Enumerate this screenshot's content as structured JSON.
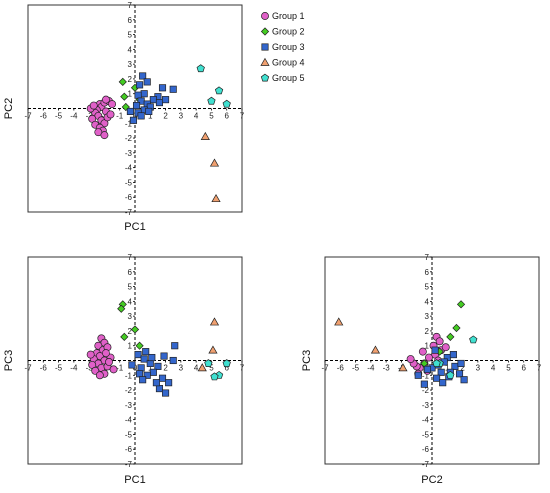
{
  "chart_data": [
    {
      "type": "scatter",
      "xlabel": "PC1",
      "ylabel": "PC2",
      "xlim": [
        -7,
        7
      ],
      "ylim": [
        -7,
        7
      ],
      "ticks": [
        "-7",
        "-6",
        "-5",
        "-4",
        "-3",
        "-2",
        "-1",
        "0",
        "1",
        "2",
        "3",
        "4",
        "5",
        "6",
        "7"
      ],
      "series": [
        {
          "name": "Group 1",
          "points": [
            [
              -2.3,
              0.3
            ],
            [
              -2.2,
              0.1
            ],
            [
              -2.0,
              0.4
            ],
            [
              -2.5,
              -0.1
            ],
            [
              -2.6,
              -0.3
            ],
            [
              -2.4,
              -0.5
            ],
            [
              -2.8,
              -0.7
            ],
            [
              -2.2,
              -0.8
            ],
            [
              -2.0,
              -1.0
            ],
            [
              -2.6,
              -1.1
            ],
            [
              -2.3,
              -1.3
            ],
            [
              -2.1,
              -1.5
            ],
            [
              -2.4,
              -1.6
            ],
            [
              -2.0,
              -1.8
            ],
            [
              -1.7,
              0.5
            ],
            [
              -1.9,
              -0.2
            ],
            [
              -1.8,
              -0.6
            ],
            [
              -1.5,
              0.3
            ],
            [
              -2.9,
              0.0
            ],
            [
              -1.6,
              -0.4
            ],
            [
              -1.9,
              0.6
            ],
            [
              -2.7,
              0.2
            ]
          ]
        },
        {
          "name": "Group 2",
          "points": [
            [
              -0.8,
              1.8
            ],
            [
              0.0,
              1.4
            ],
            [
              -0.7,
              0.8
            ],
            [
              0.3,
              0.6
            ],
            [
              -0.6,
              0.1
            ]
          ]
        },
        {
          "name": "Group 3",
          "points": [
            [
              0.5,
              2.2
            ],
            [
              0.8,
              1.8
            ],
            [
              0.3,
              1.6
            ],
            [
              1.8,
              1.4
            ],
            [
              2.5,
              1.3
            ],
            [
              0.6,
              1.0
            ],
            [
              0.2,
              0.9
            ],
            [
              1.5,
              0.8
            ],
            [
              1.2,
              0.6
            ],
            [
              0.4,
              0.5
            ],
            [
              1.6,
              0.4
            ],
            [
              0.8,
              0.3
            ],
            [
              0.1,
              0.2
            ],
            [
              1.0,
              0.1
            ],
            [
              0.6,
              -0.1
            ],
            [
              0.2,
              -0.3
            ],
            [
              -0.3,
              -0.2
            ],
            [
              0.4,
              -0.5
            ],
            [
              -0.1,
              -0.8
            ],
            [
              0.9,
              -0.2
            ],
            [
              2.0,
              0.6
            ]
          ]
        },
        {
          "name": "Group 4",
          "points": [
            [
              4.6,
              -1.9
            ],
            [
              5.2,
              -3.7
            ],
            [
              5.3,
              -6.1
            ]
          ]
        },
        {
          "name": "Group 5",
          "points": [
            [
              4.3,
              2.7
            ],
            [
              5.5,
              1.2
            ],
            [
              5.0,
              0.5
            ],
            [
              6.0,
              0.3
            ]
          ]
        }
      ]
    },
    {
      "type": "scatter",
      "xlabel": "PC1",
      "ylabel": "PC3",
      "xlim": [
        -7,
        7
      ],
      "ylim": [
        -7,
        7
      ],
      "ticks": [
        "-7",
        "-6",
        "-5",
        "-4",
        "-3",
        "-2",
        "-1",
        "0",
        "1",
        "2",
        "3",
        "4",
        "5",
        "6",
        "7"
      ],
      "series": [
        {
          "name": "Group 1",
          "points": [
            [
              -2.2,
              1.5
            ],
            [
              -2.0,
              1.2
            ],
            [
              -2.4,
              1.0
            ],
            [
              -2.1,
              0.7
            ],
            [
              -2.5,
              0.5
            ],
            [
              -2.3,
              0.3
            ],
            [
              -2.7,
              0.1
            ],
            [
              -2.0,
              0.0
            ],
            [
              -2.4,
              -0.2
            ],
            [
              -2.8,
              -0.3
            ],
            [
              -2.2,
              -0.5
            ],
            [
              -1.8,
              -0.4
            ],
            [
              -2.6,
              -0.7
            ],
            [
              -2.0,
              -0.9
            ],
            [
              -1.6,
              0.2
            ],
            [
              -1.8,
              0.9
            ],
            [
              -1.4,
              -0.6
            ],
            [
              -2.9,
              0.4
            ],
            [
              -1.7,
              -0.1
            ],
            [
              -2.3,
              -1.0
            ],
            [
              -1.9,
              0.5
            ]
          ]
        },
        {
          "name": "Group 2",
          "points": [
            [
              -0.8,
              3.8
            ],
            [
              -0.9,
              3.5
            ],
            [
              -0.7,
              1.6
            ],
            [
              0.0,
              2.1
            ],
            [
              0.3,
              1.0
            ]
          ]
        },
        {
          "name": "Group 3",
          "points": [
            [
              0.2,
              0.4
            ],
            [
              0.6,
              0.1
            ],
            [
              1.0,
              -0.2
            ],
            [
              0.4,
              -0.5
            ],
            [
              1.5,
              -0.4
            ],
            [
              1.2,
              -0.8
            ],
            [
              0.8,
              -1.0
            ],
            [
              1.8,
              -1.2
            ],
            [
              2.2,
              -1.5
            ],
            [
              1.6,
              -1.9
            ],
            [
              2.0,
              -2.2
            ],
            [
              0.3,
              -0.9
            ],
            [
              -0.2,
              -0.3
            ],
            [
              1.9,
              0.3
            ],
            [
              2.6,
              1.0
            ],
            [
              2.5,
              0.0
            ],
            [
              1.1,
              0.2
            ],
            [
              0.5,
              -1.3
            ],
            [
              1.4,
              -1.5
            ],
            [
              0.7,
              0.6
            ]
          ]
        },
        {
          "name": "Group 4",
          "points": [
            [
              5.2,
              2.6
            ],
            [
              5.1,
              0.7
            ],
            [
              4.4,
              -0.5
            ]
          ]
        },
        {
          "name": "Group 5",
          "points": [
            [
              4.8,
              -0.2
            ],
            [
              6.0,
              -0.2
            ],
            [
              5.5,
              -1.0
            ],
            [
              5.2,
              -1.1
            ]
          ]
        }
      ]
    },
    {
      "type": "scatter",
      "xlabel": "PC2",
      "ylabel": "PC3",
      "xlim": [
        -7,
        7
      ],
      "ylim": [
        -7,
        7
      ],
      "ticks": [
        "-7",
        "-6",
        "-5",
        "-4",
        "-3",
        "-2",
        "-1",
        "0",
        "1",
        "2",
        "3",
        "4",
        "5",
        "6",
        "7"
      ],
      "series": [
        {
          "name": "Group 1",
          "points": [
            [
              0.3,
              1.6
            ],
            [
              0.5,
              1.3
            ],
            [
              0.1,
              1.0
            ],
            [
              0.6,
              0.7
            ],
            [
              0.2,
              0.4
            ],
            [
              -0.2,
              0.2
            ],
            [
              0.4,
              0.0
            ],
            [
              -0.5,
              -0.2
            ],
            [
              -0.8,
              -0.5
            ],
            [
              -0.3,
              -0.7
            ],
            [
              -1.0,
              -0.4
            ],
            [
              -1.2,
              -0.2
            ],
            [
              -0.6,
              0.6
            ],
            [
              -1.4,
              0.1
            ],
            [
              0.9,
              0.9
            ],
            [
              -0.9,
              -0.9
            ]
          ]
        },
        {
          "name": "Group 2",
          "points": [
            [
              1.9,
              3.8
            ],
            [
              1.6,
              2.2
            ],
            [
              1.2,
              1.6
            ],
            [
              0.5,
              0.6
            ],
            [
              -0.5,
              -0.2
            ]
          ]
        },
        {
          "name": "Group 3",
          "points": [
            [
              1.0,
              0.2
            ],
            [
              0.4,
              -0.3
            ],
            [
              0.0,
              -0.5
            ],
            [
              1.5,
              -0.4
            ],
            [
              0.6,
              -0.8
            ],
            [
              1.1,
              -1.1
            ],
            [
              1.8,
              -0.9
            ],
            [
              0.3,
              -1.2
            ],
            [
              -0.5,
              -1.6
            ],
            [
              0.8,
              -0.1
            ],
            [
              1.4,
              0.4
            ],
            [
              -0.9,
              -1.0
            ],
            [
              0.2,
              0.7
            ],
            [
              1.9,
              -0.2
            ],
            [
              0.7,
              -1.5
            ],
            [
              -0.3,
              -0.6
            ],
            [
              2.1,
              -1.3
            ],
            [
              1.2,
              -0.8
            ]
          ]
        },
        {
          "name": "Group 4",
          "points": [
            [
              -6.1,
              2.6
            ],
            [
              -3.7,
              0.7
            ],
            [
              -1.9,
              -0.5
            ]
          ]
        },
        {
          "name": "Group 5",
          "points": [
            [
              2.7,
              1.4
            ],
            [
              0.5,
              -0.2
            ],
            [
              0.3,
              -0.2
            ],
            [
              1.2,
              -1.0
            ]
          ]
        }
      ]
    }
  ],
  "legend": {
    "items": [
      {
        "label": "Group 1",
        "marker": "circle",
        "color": "#e060c8"
      },
      {
        "label": "Group 2",
        "marker": "diamond",
        "color": "#44cc22"
      },
      {
        "label": "Group 3",
        "marker": "square",
        "color": "#3366cc"
      },
      {
        "label": "Group 4",
        "marker": "triangle",
        "color": "#f0a070"
      },
      {
        "label": "Group 5",
        "marker": "pentagon",
        "color": "#40e0d0"
      }
    ]
  }
}
